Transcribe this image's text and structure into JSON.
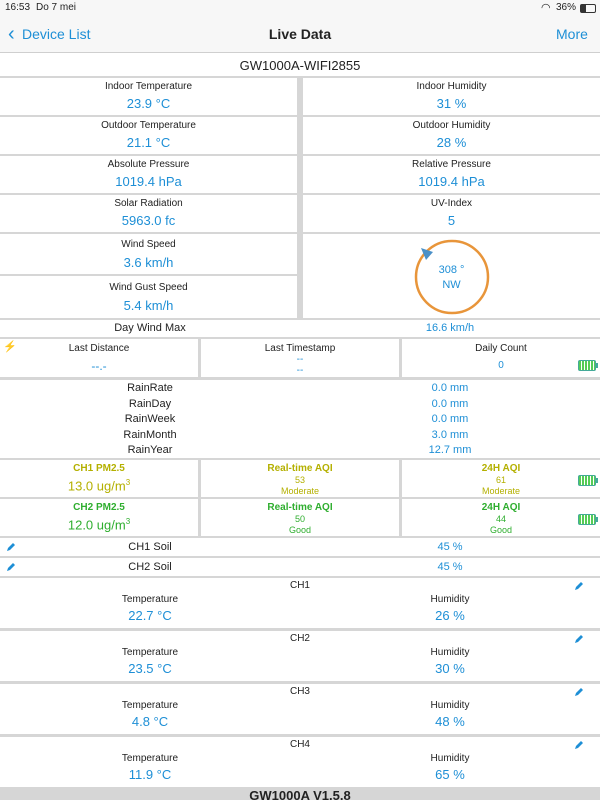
{
  "status_bar": {
    "time": "16:53",
    "date": "Do 7 mei",
    "battery": "36%"
  },
  "nav": {
    "back_label": "Device List",
    "title": "Live Data",
    "more_label": "More"
  },
  "device_name": "GW1000A-WIFI2855",
  "indoor": {
    "temp_label": "Indoor Temperature",
    "temp_value": "23.9 °C",
    "hum_label": "Indoor Humidity",
    "hum_value": "31 %"
  },
  "outdoor": {
    "temp_label": "Outdoor Temperature",
    "temp_value": "21.1 °C",
    "hum_label": "Outdoor Humidity",
    "hum_value": "28 %"
  },
  "pressure": {
    "abs_label": "Absolute Pressure",
    "abs_value": "1019.4 hPa",
    "rel_label": "Relative Pressure",
    "rel_value": "1019.4 hPa"
  },
  "solar": {
    "label": "Solar Radiation",
    "value": "5963.0 fc",
    "uv_label": "UV-Index",
    "uv_value": "5"
  },
  "wind": {
    "speed_label": "Wind Speed",
    "speed_value": "3.6 km/h",
    "gust_label": "Wind Gust Speed",
    "gust_value": "5.4 km/h",
    "dir_deg": "308 °",
    "dir_card": "NW",
    "daymax_label": "Day Wind Max",
    "daymax_value": "16.6 km/h"
  },
  "lightning": {
    "dist_label": "Last Distance",
    "dist_value": "--.-",
    "ts_label": "Last Timestamp",
    "ts_value1": "--",
    "ts_value2": "--",
    "count_label": "Daily Count",
    "count_value": "0"
  },
  "rain": [
    {
      "label": "RainRate",
      "value": "0.0 mm"
    },
    {
      "label": "RainDay",
      "value": "0.0 mm"
    },
    {
      "label": "RainWeek",
      "value": "0.0 mm"
    },
    {
      "label": "RainMonth",
      "value": "3.0 mm"
    },
    {
      "label": "RainYear",
      "value": "12.7 mm"
    }
  ],
  "pm": {
    "ch1": {
      "label": "CH1 PM2.5",
      "value": "13.0 ug/m",
      "sup": "3",
      "rt_label": "Real-time AQI",
      "rt_value": "53",
      "rt_state": "Moderate",
      "h24_label": "24H AQI",
      "h24_value": "61",
      "h24_state": "Moderate"
    },
    "ch2": {
      "label": "CH2 PM2.5",
      "value": "12.0 ug/m",
      "sup": "3",
      "rt_label": "Real-time AQI",
      "rt_value": "50",
      "rt_state": "Good",
      "h24_label": "24H AQI",
      "h24_value": "44",
      "h24_state": "Good"
    }
  },
  "soil": [
    {
      "label": "CH1 Soil",
      "value": "45 %"
    },
    {
      "label": "CH2 Soil",
      "value": "45 %"
    }
  ],
  "channels": [
    {
      "name": "CH1",
      "temp_label": "Temperature",
      "temp_value": "22.7 °C",
      "hum_label": "Humidity",
      "hum_value": "26 %"
    },
    {
      "name": "CH2",
      "temp_label": "Temperature",
      "temp_value": "23.5 °C",
      "hum_label": "Humidity",
      "hum_value": "30 %"
    },
    {
      "name": "CH3",
      "temp_label": "Temperature",
      "temp_value": "4.8 °C",
      "hum_label": "Humidity",
      "hum_value": "48 %"
    },
    {
      "name": "CH4",
      "temp_label": "Temperature",
      "temp_value": "11.9 °C",
      "hum_label": "Humidity",
      "hum_value": "65 %"
    }
  ],
  "footer": "GW1000A V1.5.8",
  "colors": {
    "accent": "#1e8fd6",
    "compass": "#e8953a",
    "pm_yellow": "#b4b000",
    "pm_green": "#2fae2f"
  }
}
